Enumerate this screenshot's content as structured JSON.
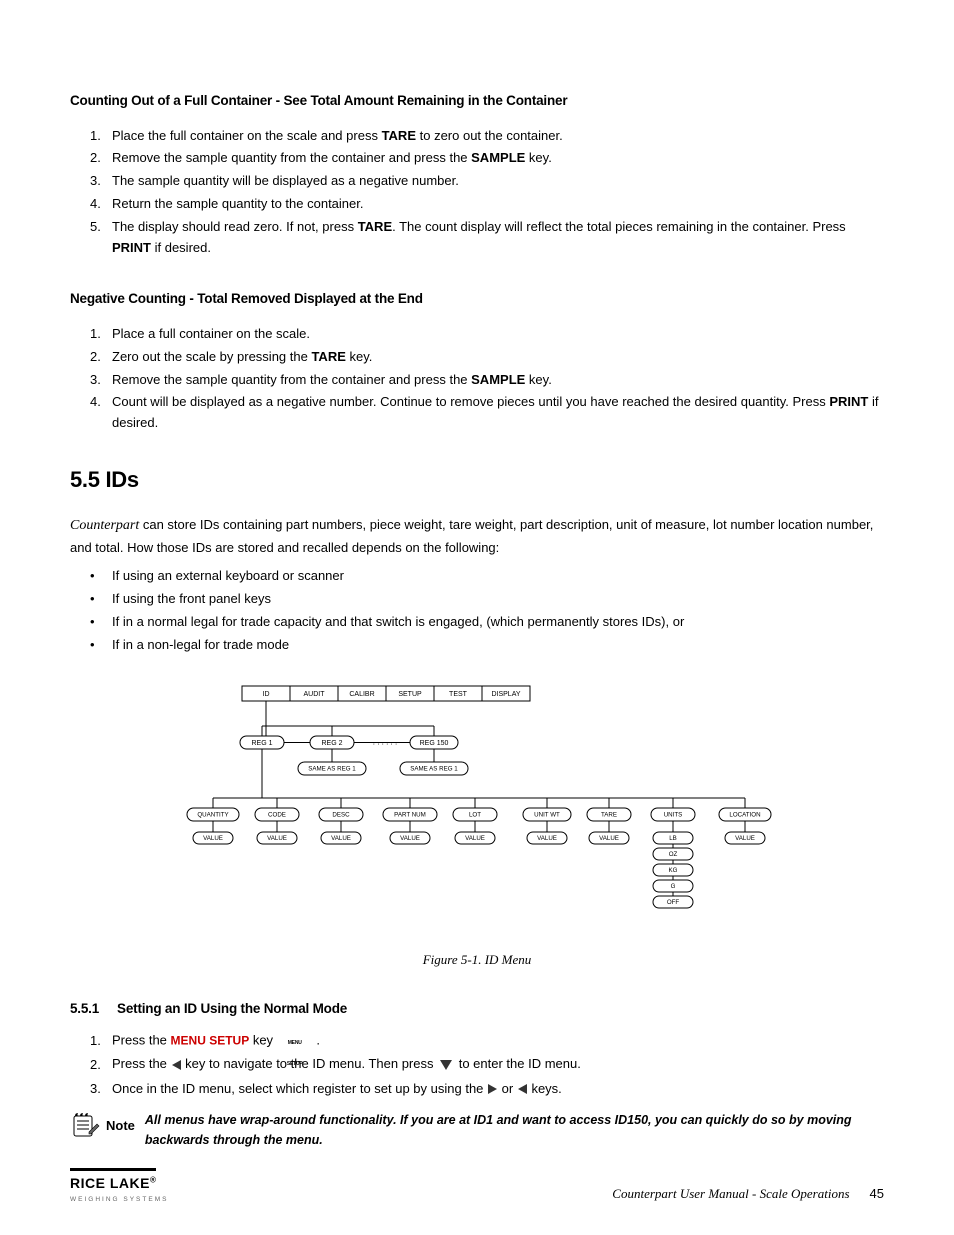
{
  "sec1": {
    "head": "Counting Out of a Full Container - See Total Amount Remaining in the Container",
    "s1a": "Place the full container on the scale and press ",
    "s1b": " to zero out the container.",
    "s2a": "Remove the sample quantity from the container and press the ",
    "s2b": " key.",
    "s3": "The sample quantity will be displayed as a negative number.",
    "s4": "Return the sample quantity to the container.",
    "s5a": "The display should read zero. If not, press ",
    "s5b": ". The count display will reflect the total pieces remaining in the container. Press ",
    "s5c": " if desired.",
    "TARE": "TARE",
    "SAMPLE": "SAMPLE",
    "PRINT": "PRINT"
  },
  "sec2": {
    "head": "Negative Counting - Total Removed Displayed at the End",
    "s1": "Place a full container on the scale.",
    "s2a": "Zero out the scale by pressing the ",
    "s2b": " key.",
    "s3a": "Remove the sample quantity from the container and press the ",
    "s3b": " key.",
    "s4a": "Count will be displayed as a negative number. Continue to remove pieces until you have reached the desired quantity. Press ",
    "s4b": " if desired.",
    "TARE": "TARE",
    "SAMPLE": "SAMPLE",
    "PRINT": "PRINT"
  },
  "ids": {
    "head": "5.5    IDs",
    "p1a": "Counterpart",
    "p1b": " can store IDs containing part numbers, piece weight, tare weight, part description, unit of measure, lot number location number, and total. How those IDs are stored and recalled depends on the following:",
    "b1": "If using an external keyboard or scanner",
    "b2": "If using the front panel keys",
    "b3": "If in a normal legal for trade capacity and that switch is engaged, (which permanently stores IDs), or",
    "b4": "If in a non-legal for trade mode",
    "figcap": "Figure 5-1. ID Menu",
    "menu": {
      "row1": [
        "ID",
        "AUDIT",
        "CALIBR",
        "SETUP",
        "TEST",
        "DISPLAY"
      ],
      "row2": [
        "REG 1",
        "REG 2",
        "REG 150"
      ],
      "same": "SAME AS REG 1",
      "row3": [
        "QUANTITY",
        "CODE",
        "DESC",
        "PART NUM",
        "LOT",
        "UNIT WT",
        "TARE",
        "UNITS",
        "LOCATION"
      ],
      "value": "VALUE",
      "units": [
        "LB",
        "OZ",
        "KG",
        "G",
        "OFF"
      ]
    },
    "colors": {
      "line": "#000000",
      "fill": "#ffffff",
      "text": "#000000"
    }
  },
  "s551": {
    "head_num": "5.5.1",
    "head_txt": "Setting an ID Using the Normal Mode",
    "s1a": "Press the ",
    "s1b": "MENU SETUP",
    "s1c": " key ",
    "s1d": ".",
    "s2a": "Press the ",
    "s2b": " key to navigate to the ID menu. Then press ",
    "s2c": " to enter the ID menu.",
    "s3a": "Once in the ID menu, select which register to set up by using the ",
    "s3b": " or ",
    "s3c": " keys."
  },
  "note": {
    "label": "Note",
    "text": "All menus have wrap-around functionality. If you are at ID1 and want to access ID150, you can quickly do so by moving backwards through the menu."
  },
  "footer": {
    "brand": "RICE LAKE",
    "reg": "®",
    "sub": "WEIGHING SYSTEMS",
    "doc": "Counterpart User Manual - Scale Operations",
    "page": "45"
  }
}
